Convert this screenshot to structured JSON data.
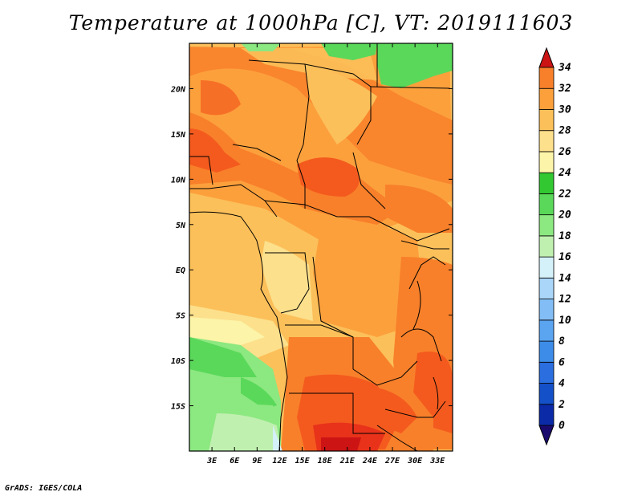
{
  "title": "Temperature at 1000hPa [C], VT: 2019111603",
  "credit": "GrADS: IGES/COLA",
  "map": {
    "lon_range": [
      0,
      35
    ],
    "lat_range": [
      -20,
      25
    ],
    "lon_ticks": [
      {
        "value": 3,
        "label": "3E"
      },
      {
        "value": 6,
        "label": "6E"
      },
      {
        "value": 9,
        "label": "9E"
      },
      {
        "value": 12,
        "label": "12E"
      },
      {
        "value": 15,
        "label": "15E"
      },
      {
        "value": 18,
        "label": "18E"
      },
      {
        "value": 21,
        "label": "21E"
      },
      {
        "value": 24,
        "label": "24E"
      },
      {
        "value": 27,
        "label": "27E"
      },
      {
        "value": 30,
        "label": "30E"
      },
      {
        "value": 33,
        "label": "33E"
      }
    ],
    "lat_ticks": [
      {
        "value": 20,
        "label": "20N"
      },
      {
        "value": 15,
        "label": "15N"
      },
      {
        "value": 10,
        "label": "10N"
      },
      {
        "value": 5,
        "label": "5N"
      },
      {
        "value": 0,
        "label": "EQ"
      },
      {
        "value": -5,
        "label": "5S"
      },
      {
        "value": -10,
        "label": "10S"
      },
      {
        "value": -15,
        "label": "15S"
      }
    ]
  },
  "colorbar": {
    "levels": [
      "0",
      "2",
      "4",
      "6",
      "8",
      "10",
      "12",
      "14",
      "16",
      "18",
      "20",
      "22",
      "24",
      "26",
      "28",
      "30",
      "32",
      "34"
    ],
    "colors": [
      "#1a0a6e",
      "#0a2aa8",
      "#1450c8",
      "#2a6ee0",
      "#3c8ce8",
      "#5aa4f0",
      "#82bef5",
      "#aad6fa",
      "#d4f0f8",
      "#c0f0b0",
      "#8ce880",
      "#5ad85a",
      "#32c832",
      "#fcf4a8",
      "#fce08c",
      "#fcc05a",
      "#fca03c",
      "#f8802a",
      "#f45a1e",
      "#e8321a",
      "#cc1414"
    ]
  }
}
